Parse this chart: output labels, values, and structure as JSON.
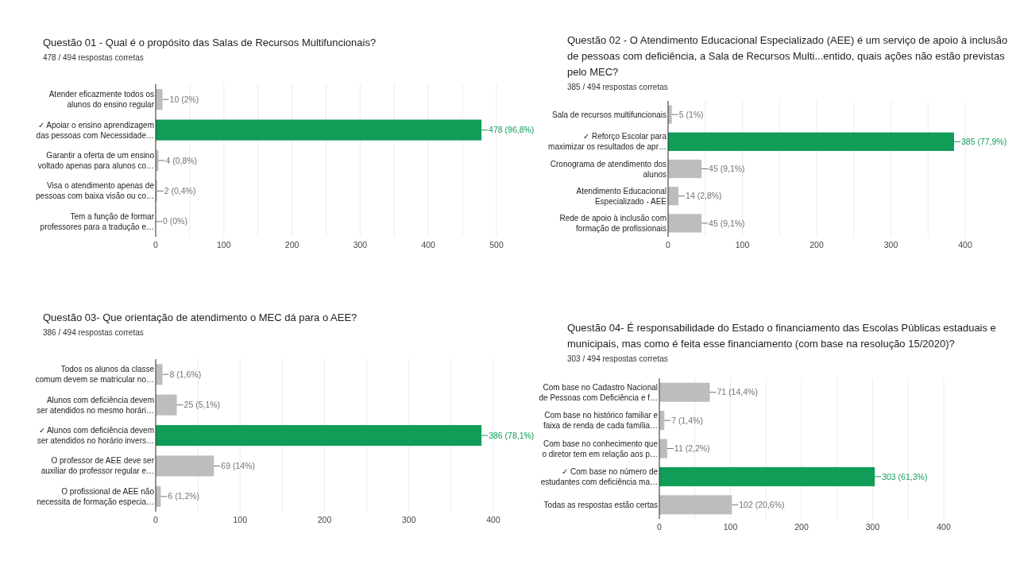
{
  "chart_data": [
    {
      "type": "bar",
      "orientation": "horizontal",
      "title": "Questão 01 - Qual é o propósito das Salas de Recursos Multifuncionais?",
      "subtitle": "478 / 494 respostas corretas",
      "categories": [
        "Atender eficazmente todos os\nalunos do ensino regular",
        "✓ Apoiar o ensino aprendizagem\ndas pessoas com Necessidade…",
        "Garantir a oferta de um ensino\nvoltado apenas para alunos co…",
        "Visa o atendimento apenas de\npessoas com baixa visão ou co…",
        "Tem a função de formar\nprofessores para a tradução e…"
      ],
      "values": [
        10,
        478,
        4,
        2,
        0
      ],
      "colors": [
        "#bdbdbd",
        "#0f9d58",
        "#bdbdbd",
        "#bdbdbd",
        "#bdbdbd"
      ],
      "value_labels": [
        "10 (2%)",
        "478 (96,8%)",
        "4 (0,8%)",
        "2 (0,4%)",
        "0 (0%)"
      ],
      "xlim": [
        0,
        500
      ],
      "xticks": [
        0,
        {
          "value": 50,
          "label": null
        },
        100,
        {
          "value": 150,
          "label": null
        },
        200,
        {
          "value": 250,
          "label": null
        },
        300,
        {
          "value": 350,
          "label": null
        },
        400,
        {
          "value": 450,
          "label": null
        },
        500
      ],
      "grid": "x"
    },
    {
      "type": "bar",
      "orientation": "horizontal",
      "title": "Questão 02 -  O Atendimento Educacional Especializado (AEE) é um serviço de apoio à inclusão de pessoas com deficiência, a Sala de Recursos Multi...entido, quais ações não estão previstas pelo MEC?",
      "subtitle": "385 / 494 respostas corretas",
      "categories": [
        "Sala de recursos multifuncionais",
        "✓ Reforço Escolar para\nmaximizar os resultados de apr…",
        "Cronograma de atendimento dos\nalunos",
        "Atendimento Educacional\nEspecializado - AEE",
        "Rede de apoio à inclusão com\nformação de profissionais"
      ],
      "values": [
        5,
        385,
        45,
        14,
        45
      ],
      "colors": [
        "#bdbdbd",
        "#0f9d58",
        "#bdbdbd",
        "#bdbdbd",
        "#bdbdbd"
      ],
      "value_labels": [
        "5 (1%)",
        "385 (77,9%)",
        "45 (9,1%)",
        "14 (2,8%)",
        "45 (9,1%)"
      ],
      "xlim": [
        0,
        400
      ],
      "xticks": [
        0,
        {
          "value": 50,
          "label": null
        },
        100,
        {
          "value": 150,
          "label": null
        },
        200,
        {
          "value": 250,
          "label": null
        },
        300,
        {
          "value": 350,
          "label": null
        },
        400
      ],
      "grid": "x"
    },
    {
      "type": "bar",
      "orientation": "horizontal",
      "title": "Questão 03- Que orientação de atendimento o MEC dá para o AEE?",
      "subtitle": "386 / 494 respostas corretas",
      "categories": [
        "Todos os alunos da classe\ncomum devem se matricular no…",
        "Alunos com deficiência devem\nser atendidos no mesmo horári…",
        "✓ Alunos com deficiência devem\nser atendidos no horário invers…",
        "O professor de AEE deve ser\nauxiliar do professor regular e…",
        "O profissional de AEE não\nnecessita de formação especia…"
      ],
      "values": [
        8,
        25,
        386,
        69,
        6
      ],
      "colors": [
        "#bdbdbd",
        "#bdbdbd",
        "#0f9d58",
        "#bdbdbd",
        "#bdbdbd"
      ],
      "value_labels": [
        "8 (1,6%)",
        "25 (5,1%)",
        "386 (78,1%)",
        "69 (14%)",
        "6 (1,2%)"
      ],
      "xlim": [
        0,
        400
      ],
      "xticks": [
        0,
        {
          "value": 50,
          "label": null
        },
        100,
        {
          "value": 150,
          "label": null
        },
        200,
        {
          "value": 250,
          "label": null
        },
        300,
        {
          "value": 350,
          "label": null
        },
        400
      ],
      "grid": "x"
    },
    {
      "type": "bar",
      "orientation": "horizontal",
      "title": "Questão 04- É responsabilidade do Estado o financiamento das Escolas Públicas estaduais e municipais, mas como é feita esse financiamento (com base na resolução 15/2020)?",
      "subtitle": "303 / 494 respostas corretas",
      "categories": [
        "Com base no Cadastro Nacional\nde Pessoas com Deficiência e f…",
        "Com base no histórico familiar e\nfaixa de renda de cada família…",
        "Com base no conhecimento que\no diretor tem em relação aos p…",
        "✓ Com base no número de\nestudantes com deficiência ma…",
        "Todas as respostas estão certas"
      ],
      "values": [
        71,
        7,
        11,
        303,
        102
      ],
      "colors": [
        "#bdbdbd",
        "#bdbdbd",
        "#bdbdbd",
        "#0f9d58",
        "#bdbdbd"
      ],
      "value_labels": [
        "71 (14,4%)",
        "7 (1,4%)",
        "11 (2,2%)",
        "303 (61,3%)",
        "102 (20,6%)"
      ],
      "xlim": [
        0,
        400
      ],
      "xticks": [
        0,
        {
          "value": 50,
          "label": null
        },
        100,
        {
          "value": 150,
          "label": null
        },
        200,
        {
          "value": 250,
          "label": null
        },
        300,
        {
          "value": 350,
          "label": null
        },
        400
      ],
      "grid": "x"
    }
  ]
}
